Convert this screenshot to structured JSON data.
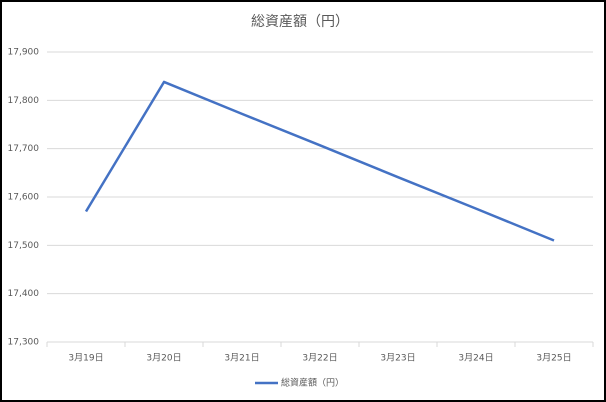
{
  "chart_data": {
    "type": "line",
    "title": "総資産額（円）",
    "categories": [
      "3月19日",
      "3月20日",
      "3月21日",
      "3月22日",
      "3月23日",
      "3月24日",
      "3月25日"
    ],
    "series": [
      {
        "name": "総資産額（円）",
        "color": "#4472c4",
        "values": [
          17570,
          17838,
          17772,
          17707,
          17641,
          17576,
          17510
        ]
      }
    ],
    "ylim": [
      17300,
      17900
    ],
    "yticks": [
      {
        "value": 17300,
        "label": "17,300"
      },
      {
        "value": 17400,
        "label": "17,400"
      },
      {
        "value": 17500,
        "label": "17,500"
      },
      {
        "value": 17600,
        "label": "17,600"
      },
      {
        "value": 17700,
        "label": "17,700"
      },
      {
        "value": 17800,
        "label": "17,800"
      },
      {
        "value": 17900,
        "label": "17,900"
      }
    ],
    "grid": true,
    "legend": "bottom"
  }
}
